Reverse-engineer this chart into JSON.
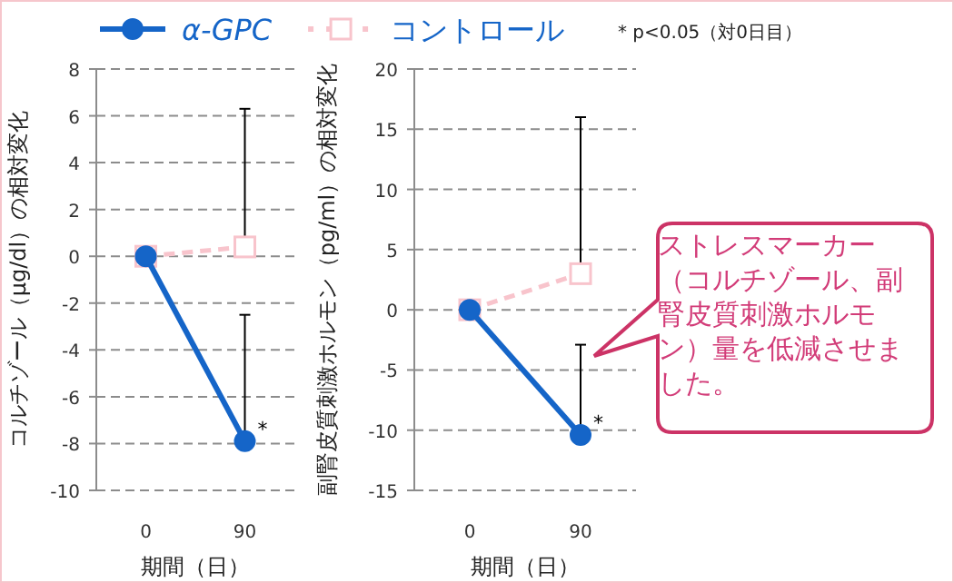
{
  "chart_data": [
    {
      "type": "line",
      "categories": [
        "0",
        "90"
      ],
      "xlabel": "期間（日）",
      "ylabel": "コルチゾール（μg/dl）の相対変化",
      "ylim": [
        -10,
        8
      ],
      "yticks": [
        -10,
        -8,
        -6,
        -4,
        -2,
        0,
        2,
        4,
        6,
        8
      ],
      "grid": "y",
      "legend": "top",
      "series": [
        {
          "name": "α-GPC",
          "color": "#1565c8",
          "values": [
            0,
            -7.9
          ],
          "errors": [
            null,
            [
              -7.9,
              -2.5
            ]
          ],
          "marker": "circle",
          "line_style": "solid"
        },
        {
          "name": "コントロール",
          "color": "#f8c4cc",
          "values": [
            0,
            0.4
          ],
          "errors": [
            null,
            [
              0.4,
              6.3
            ]
          ],
          "marker": "square",
          "line_style": "dashed"
        }
      ],
      "annotations": [
        {
          "text": "*",
          "x": "90",
          "y": -7.9
        }
      ]
    },
    {
      "type": "line",
      "categories": [
        "0",
        "90"
      ],
      "xlabel": "期間（日）",
      "ylabel": "副腎皮質刺激ホルモン（pg/ml）の相対変化",
      "ylim": [
        -15,
        20
      ],
      "yticks": [
        -15,
        -10,
        -5,
        0,
        5,
        10,
        15,
        20
      ],
      "grid": "y",
      "series": [
        {
          "color": "#1565c8",
          "values": [
            0,
            -10.4
          ],
          "errors": [
            null,
            [
              -10.4,
              -2.9
            ]
          ],
          "marker": "circle",
          "line_style": "solid"
        },
        {
          "color": "#f8c4cc",
          "values": [
            0,
            3
          ],
          "errors": [
            null,
            [
              3,
              16
            ]
          ],
          "marker": "square",
          "line_style": "dashed"
        }
      ],
      "annotations": [
        "* p<0.05（対0日目）",
        "ストレスマーカー（コルチゾール、副腎皮質刺激ホルモン）量を低減させました。",
        {
          "text": "*",
          "x": "90",
          "y": -10.4
        }
      ]
    }
  ]
}
